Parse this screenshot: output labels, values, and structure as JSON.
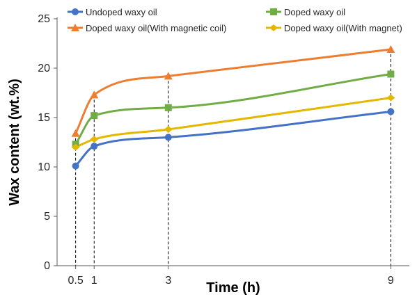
{
  "chart_data": {
    "type": "line",
    "xlabel": "Time (h)",
    "ylabel": "Wax content (wt.%)",
    "x": [
      0.5,
      1,
      3,
      9
    ],
    "xticks": [
      "0.5",
      "1",
      "3",
      "9"
    ],
    "xlim": [
      0,
      9.5
    ],
    "ylim": [
      0,
      25
    ],
    "yticks": [
      "0",
      "5",
      "10",
      "15",
      "20",
      "25"
    ],
    "grid": false,
    "legend": "top",
    "series": [
      {
        "name": "Undoped waxy oil",
        "values": [
          10.1,
          12.1,
          13.0,
          15.6
        ],
        "color": "#4472C4",
        "marker": "circle"
      },
      {
        "name": "Doped waxy oil",
        "values": [
          12.3,
          15.2,
          16.0,
          19.4
        ],
        "color": "#70AD47",
        "marker": "square"
      },
      {
        "name": "Doped waxy oil(With magnetic coil)",
        "values": [
          13.4,
          17.3,
          19.2,
          21.9
        ],
        "color": "#ED7D31",
        "marker": "triangle"
      },
      {
        "name": "Doped waxy oil(With magnet)",
        "values": [
          12.0,
          12.8,
          13.8,
          17.0
        ],
        "color": "#E5B800",
        "marker": "diamond"
      }
    ]
  }
}
